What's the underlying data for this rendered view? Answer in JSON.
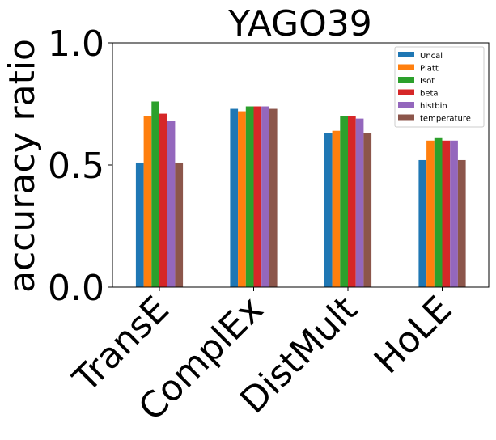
{
  "chart_data": {
    "type": "bar",
    "title": "YAGO39",
    "xlabel": "",
    "ylabel": "accuracy ratio",
    "ylim": [
      0,
      1.0
    ],
    "yticks": [
      "0.0",
      "0.5",
      "1.0"
    ],
    "yticks_values": [
      0,
      0.5,
      1.0
    ],
    "categories": [
      "TransE",
      "ComplEx",
      "DistMult",
      "HoLE"
    ],
    "series": [
      {
        "name": "Uncal",
        "color": "#1f77b4",
        "values": [
          0.51,
          0.73,
          0.63,
          0.52
        ]
      },
      {
        "name": "Platt",
        "color": "#ff7f0e",
        "values": [
          0.7,
          0.72,
          0.64,
          0.6
        ]
      },
      {
        "name": "Isot",
        "color": "#2ca02c",
        "values": [
          0.76,
          0.74,
          0.7,
          0.61
        ]
      },
      {
        "name": "beta",
        "color": "#d62728",
        "values": [
          0.71,
          0.74,
          0.7,
          0.6
        ]
      },
      {
        "name": "histbin",
        "color": "#9467bd",
        "values": [
          0.68,
          0.74,
          0.69,
          0.6
        ]
      },
      {
        "name": "temperature",
        "color": "#8c564b",
        "values": [
          0.51,
          0.73,
          0.63,
          0.52
        ]
      }
    ],
    "legend": "top-right",
    "grid": false
  }
}
